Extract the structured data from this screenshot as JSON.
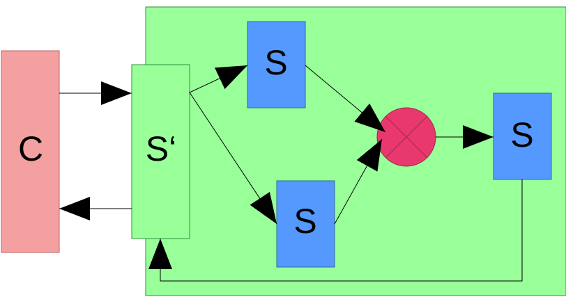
{
  "nodes": {
    "client": {
      "label": "C"
    },
    "dispatcher": {
      "label": "S‘"
    },
    "server_top": {
      "label": "S"
    },
    "server_bottom": {
      "label": "S"
    },
    "server_right": {
      "label": "S"
    }
  },
  "colors": {
    "system_boundary": "#99ff99",
    "client_box": "#f4a0a0",
    "dispatcher_box": "#99ff99",
    "server_box": "#5599ff",
    "combiner": "#e8386e",
    "outline": "#336699",
    "line": "#000000"
  }
}
